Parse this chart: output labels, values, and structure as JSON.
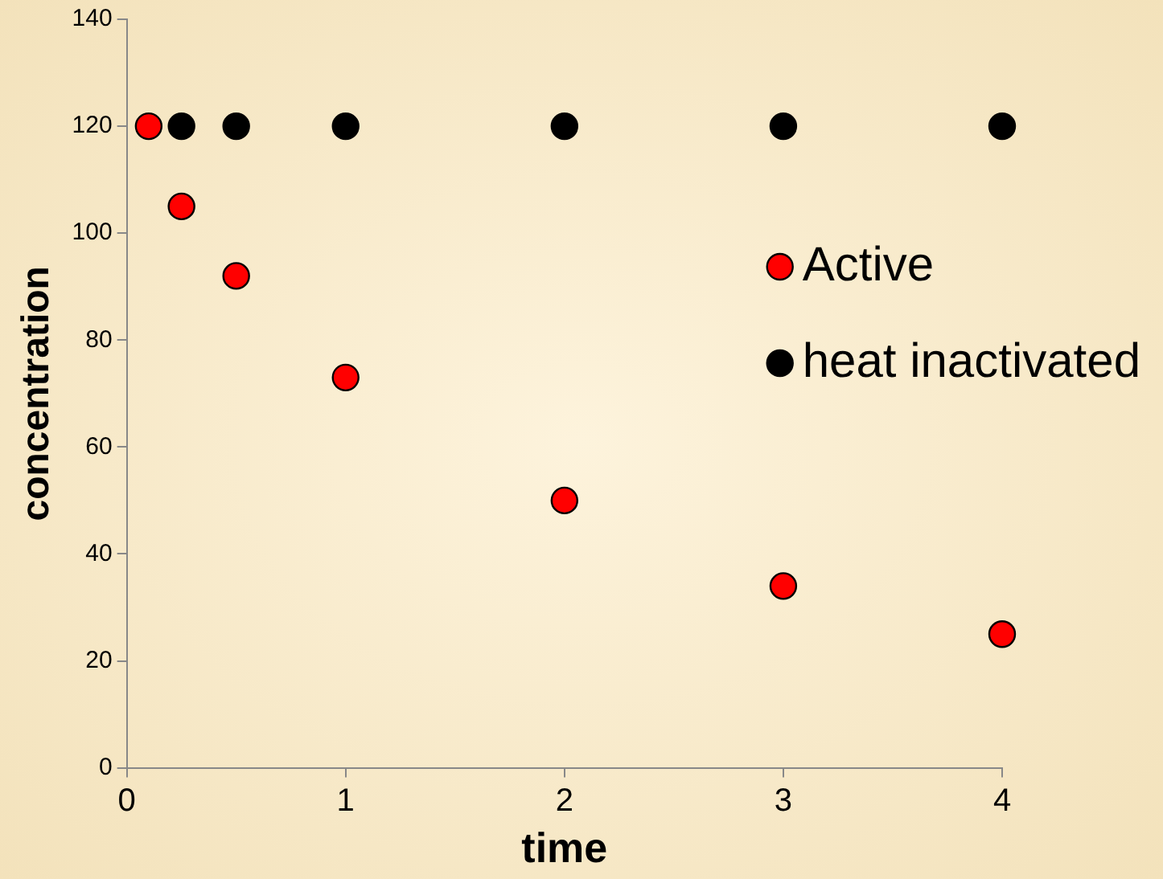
{
  "chart_data": {
    "type": "scatter",
    "xlabel": "time",
    "ylabel": "concentration",
    "xlim": [
      0,
      4
    ],
    "xticks": [
      0,
      1,
      2,
      3,
      4
    ],
    "ylim": [
      0,
      140
    ],
    "yticks": [
      0,
      20,
      40,
      60,
      80,
      100,
      120,
      140
    ],
    "grid": false,
    "legend": "right",
    "marker": "circle",
    "series": [
      {
        "name": "Active",
        "color": "#ff0000",
        "x": [
          0.1,
          0.25,
          0.5,
          1,
          2,
          3,
          4
        ],
        "values": [
          120,
          105,
          92,
          73,
          50,
          34,
          25
        ]
      },
      {
        "name": "heat inactivated",
        "color": "#000000",
        "x": [
          0.25,
          0.5,
          1,
          2,
          3,
          4
        ],
        "values": [
          120,
          120,
          120,
          120,
          120,
          120
        ]
      }
    ]
  }
}
